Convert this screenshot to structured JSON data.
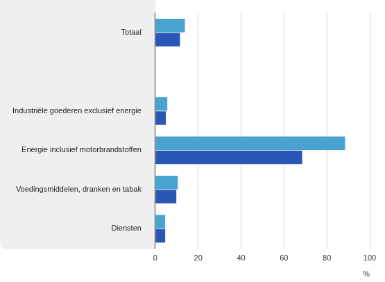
{
  "chart_data": {
    "type": "bar",
    "orientation": "horizontal",
    "categories": [
      "Totaal",
      null,
      "Industriële goederen exclusief energie",
      "Energie inclusief motorbrandstoffen",
      "Voedingsmiddelen, dranken en tabak",
      "Diensten"
    ],
    "series": [
      {
        "color": "#48a3d1",
        "values": [
          13.8,
          null,
          5.6,
          88.5,
          10.5,
          4.6
        ]
      },
      {
        "color": "#2a57b5",
        "values": [
          11.5,
          null,
          4.9,
          68.5,
          9.8,
          4.6
        ]
      }
    ],
    "xlim": [
      0,
      100
    ],
    "xticks": [
      0,
      20,
      40,
      60,
      80,
      100
    ],
    "x_label": "%",
    "grid": true
  }
}
